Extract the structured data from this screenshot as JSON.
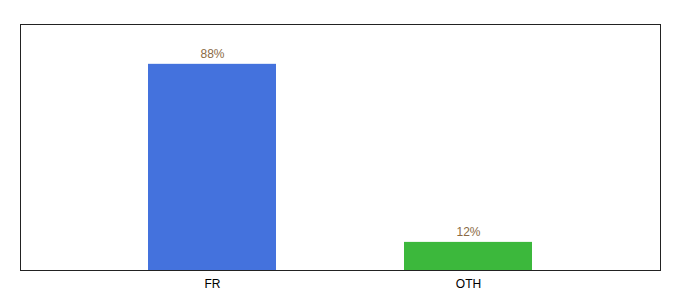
{
  "chart_data": {
    "type": "bar",
    "categories": [
      "FR",
      "OTH"
    ],
    "values": [
      88,
      12
    ],
    "value_labels": [
      "88%",
      "12%"
    ],
    "colors": [
      "#4472dd",
      "#3cb83c"
    ],
    "ylim": [
      0,
      105
    ],
    "data_labels": true,
    "tick_labels": "x"
  }
}
